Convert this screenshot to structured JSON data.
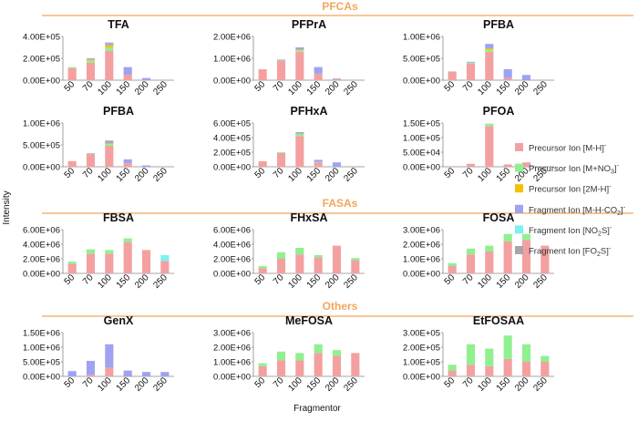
{
  "figure": {
    "y_label": "Intensity",
    "x_label": "Fragmentor",
    "sections": [
      "PFCAs",
      "FASAs",
      "Others"
    ]
  },
  "legend": {
    "items": [
      {
        "base": "Precursor Ion [M-H]",
        "sub": "",
        "sup": "-",
        "color": "#f4a0a0"
      },
      {
        "base": "Precursor Ion [M+NO",
        "sub": "3",
        "tail": "]",
        "sup": "-",
        "color": "#90f090"
      },
      {
        "base": "Precursor Ion [2M-H]",
        "sub": "",
        "sup": "-",
        "color": "#f5c000"
      },
      {
        "base": "Fragment Ion [M-H-CO",
        "sub": "2",
        "tail": "]",
        "sup": "-",
        "color": "#9ea3f0"
      },
      {
        "base": "Fragment Ion [NO",
        "sub": "2",
        "tail": "S]",
        "sup": "-",
        "color": "#7ff0f0"
      },
      {
        "base": "Fragment Ion [FO",
        "sub": "2",
        "tail": "S]",
        "sup": "-",
        "color": "#a6a6a6"
      }
    ]
  },
  "chart_data": [
    {
      "type": "bar",
      "stacked": true,
      "title": "TFA",
      "categories": [
        "50",
        "70",
        "100",
        "150",
        "200",
        "250"
      ],
      "ylim": [
        0,
        400000
      ],
      "yticks": [
        "0.00E+00",
        "2.00E+05",
        "4.00E+05"
      ],
      "series": [
        {
          "values": [
            110000,
            160000,
            270000,
            50000,
            0,
            0
          ]
        },
        {
          "values": [
            10000,
            20000,
            30000,
            0,
            0,
            0
          ]
        },
        {
          "values": [
            0,
            10000,
            20000,
            0,
            0,
            0
          ]
        },
        {
          "values": [
            0,
            10000,
            20000,
            70000,
            20000,
            0
          ]
        },
        {
          "values": [
            0,
            0,
            0,
            0,
            0,
            0
          ]
        },
        {
          "values": [
            0,
            0,
            5000,
            0,
            0,
            0
          ]
        }
      ]
    },
    {
      "type": "bar",
      "stacked": true,
      "title": "PFPrA",
      "categories": [
        "50",
        "70",
        "100",
        "150",
        "200",
        "250"
      ],
      "ylim": [
        0,
        2000000
      ],
      "yticks": [
        "0.00E+00",
        "1.00E+06",
        "2.00E+06"
      ],
      "series": [
        {
          "values": [
            500000,
            900000,
            1300000,
            300000,
            50000,
            0
          ]
        },
        {
          "values": [
            0,
            30000,
            60000,
            0,
            0,
            0
          ]
        },
        {
          "values": [
            0,
            0,
            40000,
            0,
            0,
            0
          ]
        },
        {
          "values": [
            0,
            20000,
            100000,
            300000,
            30000,
            0
          ]
        },
        {
          "values": [
            0,
            0,
            0,
            0,
            0,
            0
          ]
        },
        {
          "values": [
            0,
            0,
            0,
            0,
            0,
            0
          ]
        }
      ]
    },
    {
      "type": "bar",
      "stacked": true,
      "title": "PFBA",
      "categories": [
        "50",
        "70",
        "100",
        "150",
        "200",
        "250"
      ],
      "ylim": [
        0,
        1000000
      ],
      "yticks": [
        "0.00E+00",
        "5.00E+05",
        "1.00E+06"
      ],
      "series": [
        {
          "values": [
            200000,
            380000,
            650000,
            50000,
            0,
            0
          ]
        },
        {
          "values": [
            0,
            20000,
            50000,
            0,
            0,
            0
          ]
        },
        {
          "values": [
            0,
            0,
            30000,
            0,
            0,
            0
          ]
        },
        {
          "values": [
            0,
            20000,
            100000,
            200000,
            120000,
            0
          ]
        },
        {
          "values": [
            0,
            0,
            0,
            0,
            0,
            0
          ]
        },
        {
          "values": [
            0,
            0,
            0,
            0,
            0,
            0
          ]
        }
      ]
    },
    {
      "type": "bar",
      "stacked": true,
      "title": "PFBA",
      "categories": [
        "50",
        "70",
        "100",
        "150",
        "200",
        "250"
      ],
      "ylim": [
        0,
        1000000
      ],
      "yticks": [
        "0.00E+00",
        "5.00E+05",
        "1.00E+06"
      ],
      "series": [
        {
          "values": [
            130000,
            290000,
            480000,
            80000,
            0,
            0
          ]
        },
        {
          "values": [
            0,
            10000,
            40000,
            0,
            0,
            0
          ]
        },
        {
          "values": [
            0,
            0,
            20000,
            0,
            0,
            0
          ]
        },
        {
          "values": [
            0,
            10000,
            60000,
            90000,
            30000,
            10000
          ]
        },
        {
          "values": [
            0,
            0,
            0,
            0,
            0,
            0
          ]
        },
        {
          "values": [
            0,
            0,
            0,
            0,
            0,
            0
          ]
        }
      ]
    },
    {
      "type": "bar",
      "stacked": true,
      "title": "PFHxA",
      "categories": [
        "50",
        "70",
        "100",
        "150",
        "200",
        "250"
      ],
      "ylim": [
        0,
        600000
      ],
      "yticks": [
        "0.00E+00",
        "2.00E+05",
        "4.00E+05",
        "6.00E+05"
      ],
      "series": [
        {
          "values": [
            75000,
            190000,
            420000,
            60000,
            0,
            0
          ]
        },
        {
          "values": [
            0,
            10000,
            30000,
            5000,
            0,
            0
          ]
        },
        {
          "values": [
            0,
            0,
            5000,
            0,
            0,
            0
          ]
        },
        {
          "values": [
            0,
            0,
            20000,
            30000,
            60000,
            0
          ]
        },
        {
          "values": [
            0,
            0,
            0,
            0,
            0,
            0
          ]
        },
        {
          "values": [
            0,
            0,
            0,
            0,
            0,
            0
          ]
        }
      ]
    },
    {
      "type": "bar",
      "stacked": true,
      "title": "PFOA",
      "categories": [
        "50",
        "70",
        "100",
        "150",
        "200",
        "250"
      ],
      "ylim": [
        0,
        150000
      ],
      "yticks": [
        "0.00E+00",
        "5.00E+04",
        "1.00E+05",
        "1.50E+05"
      ],
      "series": [
        {
          "values": [
            2000,
            10000,
            140000,
            8000,
            15000,
            0
          ]
        },
        {
          "values": [
            0,
            0,
            8000,
            0,
            0,
            0
          ]
        },
        {
          "values": [
            0,
            0,
            0,
            0,
            0,
            0
          ]
        },
        {
          "values": [
            0,
            0,
            0,
            0,
            0,
            0
          ]
        },
        {
          "values": [
            0,
            0,
            0,
            0,
            0,
            0
          ]
        },
        {
          "values": [
            0,
            0,
            0,
            0,
            0,
            0
          ]
        }
      ]
    },
    {
      "type": "bar",
      "stacked": true,
      "title": "FBSA",
      "categories": [
        "50",
        "70",
        "100",
        "150",
        "200",
        "250"
      ],
      "ylim": [
        0,
        6000000
      ],
      "yticks": [
        "0.00E+00",
        "2.00E+06",
        "4.00E+06",
        "6.00E+06"
      ],
      "series": [
        {
          "values": [
            1300000,
            2700000,
            2700000,
            4300000,
            3200000,
            1700000
          ]
        },
        {
          "values": [
            300000,
            600000,
            500000,
            500000,
            0,
            0
          ]
        },
        {
          "values": [
            0,
            0,
            0,
            0,
            0,
            0
          ]
        },
        {
          "values": [
            0,
            0,
            0,
            0,
            0,
            0
          ]
        },
        {
          "values": [
            0,
            0,
            0,
            0,
            0,
            800000
          ]
        },
        {
          "values": [
            0,
            0,
            0,
            0,
            0,
            0
          ]
        }
      ]
    },
    {
      "type": "bar",
      "stacked": true,
      "title": "FHxSA",
      "categories": [
        "50",
        "70",
        "100",
        "150",
        "200",
        "250"
      ],
      "ylim": [
        0,
        6000000
      ],
      "yticks": [
        "0.00E+00",
        "2.00E+06",
        "4.00E+06",
        "6.00E+06"
      ],
      "series": [
        {
          "values": [
            700000,
            2000000,
            2600000,
            2200000,
            3800000,
            1800000
          ]
        },
        {
          "values": [
            300000,
            900000,
            900000,
            300000,
            0,
            300000
          ]
        },
        {
          "values": [
            0,
            0,
            0,
            0,
            0,
            0
          ]
        },
        {
          "values": [
            0,
            0,
            0,
            0,
            0,
            0
          ]
        },
        {
          "values": [
            0,
            0,
            0,
            0,
            0,
            0
          ]
        },
        {
          "values": [
            0,
            0,
            0,
            0,
            0,
            0
          ]
        }
      ]
    },
    {
      "type": "bar",
      "stacked": true,
      "title": "FOSA",
      "categories": [
        "50",
        "70",
        "100",
        "150",
        "200",
        "250"
      ],
      "ylim": [
        0,
        3000000
      ],
      "yticks": [
        "0.00E+00",
        "1.00E+06",
        "2.00E+06",
        "3.00E+06"
      ],
      "series": [
        {
          "values": [
            500000,
            1300000,
            1500000,
            2200000,
            2300000,
            1900000
          ]
        },
        {
          "values": [
            200000,
            400000,
            400000,
            500000,
            400000,
            0
          ]
        },
        {
          "values": [
            0,
            0,
            0,
            0,
            0,
            0
          ]
        },
        {
          "values": [
            0,
            0,
            0,
            0,
            0,
            0
          ]
        },
        {
          "values": [
            0,
            0,
            0,
            0,
            0,
            0
          ]
        },
        {
          "values": [
            0,
            0,
            0,
            0,
            0,
            0
          ]
        }
      ]
    },
    {
      "type": "bar",
      "stacked": true,
      "title": "GenX",
      "categories": [
        "50",
        "70",
        "100",
        "150",
        "200",
        "250"
      ],
      "ylim": [
        0,
        1500000
      ],
      "yticks": [
        "0.00E+00",
        "5.00E+05",
        "1.00E+06",
        "1.50E+06"
      ],
      "series": [
        {
          "values": [
            0,
            50000,
            300000,
            0,
            0,
            0
          ]
        },
        {
          "values": [
            0,
            0,
            0,
            0,
            0,
            0
          ]
        },
        {
          "values": [
            0,
            0,
            0,
            0,
            0,
            0
          ]
        },
        {
          "values": [
            180000,
            480000,
            800000,
            200000,
            150000,
            150000
          ]
        },
        {
          "values": [
            0,
            0,
            0,
            0,
            0,
            0
          ]
        },
        {
          "values": [
            0,
            0,
            0,
            0,
            0,
            0
          ]
        }
      ]
    },
    {
      "type": "bar",
      "stacked": true,
      "title": "MeFOSA",
      "categories": [
        "50",
        "70",
        "100",
        "150",
        "200",
        "250"
      ],
      "ylim": [
        0,
        3000000
      ],
      "yticks": [
        "0.00E+00",
        "1.00E+06",
        "2.00E+06",
        "3.00E+06"
      ],
      "series": [
        {
          "values": [
            700000,
            1100000,
            1100000,
            1600000,
            1400000,
            1600000
          ]
        },
        {
          "values": [
            200000,
            600000,
            500000,
            600000,
            400000,
            0
          ]
        },
        {
          "values": [
            0,
            0,
            0,
            0,
            0,
            0
          ]
        },
        {
          "values": [
            0,
            0,
            0,
            0,
            0,
            0
          ]
        },
        {
          "values": [
            0,
            0,
            0,
            0,
            0,
            0
          ]
        },
        {
          "values": [
            0,
            0,
            0,
            0,
            0,
            0
          ]
        }
      ]
    },
    {
      "type": "bar",
      "stacked": true,
      "title": "EtFOSAA",
      "categories": [
        "50",
        "70",
        "100",
        "150",
        "200",
        "250"
      ],
      "ylim": [
        0,
        300000
      ],
      "yticks": [
        "0.00E+00",
        "1.00E+05",
        "2.00E+05",
        "3.00E+05"
      ],
      "series": [
        {
          "values": [
            40000,
            80000,
            70000,
            120000,
            100000,
            100000
          ]
        },
        {
          "values": [
            40000,
            140000,
            120000,
            160000,
            120000,
            40000
          ]
        },
        {
          "values": [
            0,
            0,
            0,
            0,
            0,
            0
          ]
        },
        {
          "values": [
            0,
            0,
            0,
            0,
            0,
            0
          ]
        },
        {
          "values": [
            0,
            0,
            0,
            0,
            0,
            0
          ]
        },
        {
          "values": [
            0,
            0,
            0,
            0,
            0,
            0
          ]
        }
      ]
    }
  ]
}
